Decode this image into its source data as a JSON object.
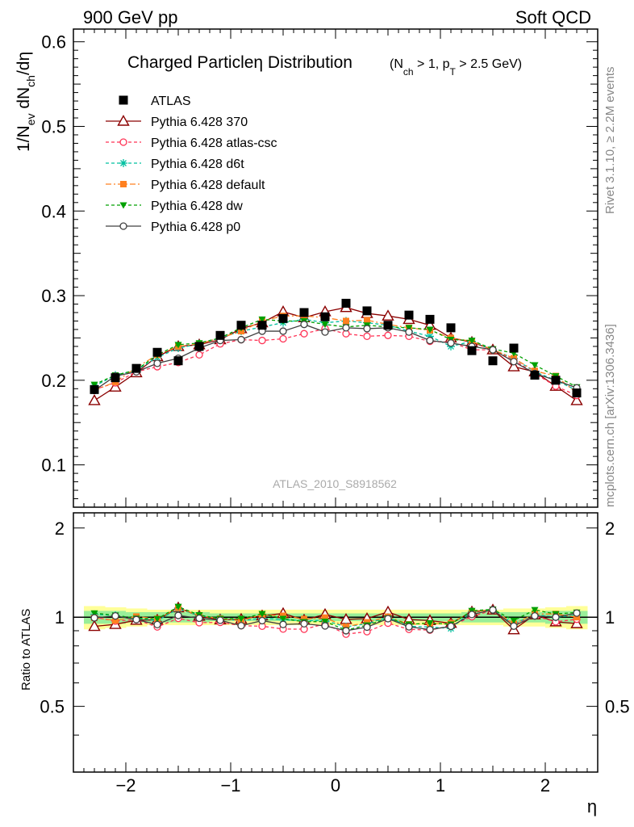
{
  "header": {
    "left": "900 GeV pp",
    "right": "Soft QCD"
  },
  "side": {
    "rivet": "Rivet 3.1.10, ≥ 2.2M events",
    "mcplots": "mcplots.cern.ch [arXiv:1306.3436]"
  },
  "chart_data": {
    "type": "scatter",
    "title_main": "Charged Particleη Distribution",
    "title_cut": "(N_ch > 1, p_T > 2.5 GeV)",
    "ref_label": "ATLAS_2010_S8918562",
    "xlabel": "η",
    "ylabel": "1/N_ev dN_ch/dη",
    "ratio_ylabel": "Ratio to ATLAS",
    "xlim": [
      -2.5,
      2.5
    ],
    "ylim": [
      0.05,
      0.615
    ],
    "ratio_ylim": [
      0.3,
      2.25
    ],
    "x_ticks": [
      -2,
      -1,
      0,
      1,
      2
    ],
    "x_tick_labels": [
      "−2",
      "−1",
      "0",
      "1",
      "2"
    ],
    "y_ticks": [
      0.1,
      0.2,
      0.3,
      0.4,
      0.5,
      0.6
    ],
    "y_tick_labels": [
      "0.1",
      "0.2",
      "0.3",
      "0.4",
      "0.5",
      "0.6"
    ],
    "ratio_ticks": [
      0.5,
      1,
      2
    ],
    "ratio_tick_labels": [
      "0.5",
      "1",
      "2"
    ],
    "x": [
      -2.3,
      -2.1,
      -1.9,
      -1.7,
      -1.5,
      -1.3,
      -1.1,
      -0.9,
      -0.7,
      -0.5,
      -0.3,
      -0.1,
      0.1,
      0.3,
      0.5,
      0.7,
      0.9,
      1.1,
      1.3,
      1.5,
      1.7,
      1.9,
      2.1,
      2.3
    ],
    "band_inner": [
      0.05,
      0.05,
      0.04,
      0.04,
      0.04,
      0.04,
      0.03,
      0.03,
      0.03,
      0.03,
      0.03,
      0.03,
      0.03,
      0.03,
      0.03,
      0.03,
      0.03,
      0.03,
      0.04,
      0.04,
      0.04,
      0.04,
      0.05,
      0.05
    ],
    "band_outer": [
      0.09,
      0.08,
      0.07,
      0.06,
      0.06,
      0.06,
      0.06,
      0.06,
      0.06,
      0.06,
      0.06,
      0.06,
      0.06,
      0.06,
      0.06,
      0.06,
      0.06,
      0.06,
      0.06,
      0.06,
      0.07,
      0.07,
      0.08,
      0.09
    ],
    "series": [
      {
        "name": "ATLAS",
        "color": "#000000",
        "marker": "square",
        "line": "none",
        "values": [
          0.189,
          0.203,
          0.214,
          0.233,
          0.223,
          0.24,
          0.253,
          0.265,
          0.265,
          0.273,
          0.28,
          0.275,
          0.291,
          0.282,
          0.265,
          0.277,
          0.272,
          0.262,
          0.235,
          0.223,
          0.238,
          0.206,
          0.2,
          0.185
        ]
      },
      {
        "name": "Pythia 6.428 370",
        "color": "#8b0000",
        "marker": "triangle-open",
        "line": "solid",
        "values": [
          0.176,
          0.192,
          0.209,
          0.228,
          0.24,
          0.242,
          0.248,
          0.261,
          0.268,
          0.281,
          0.274,
          0.281,
          0.286,
          0.279,
          0.276,
          0.272,
          0.265,
          0.25,
          0.245,
          0.236,
          0.216,
          0.21,
          0.193,
          0.176
        ]
      },
      {
        "name": "Pythia 6.428 atlas-csc",
        "color": "#ff3355",
        "marker": "circle-open",
        "line": "dashed",
        "values": [
          0.189,
          0.197,
          0.21,
          0.216,
          0.221,
          0.23,
          0.243,
          0.248,
          0.247,
          0.249,
          0.255,
          0.261,
          0.255,
          0.252,
          0.253,
          0.252,
          0.246,
          0.245,
          0.236,
          0.236,
          0.224,
          0.208,
          0.193,
          0.182
        ]
      },
      {
        "name": "Pythia 6.428 d6t",
        "color": "#00c0a0",
        "marker": "star",
        "line": "dashed",
        "values": [
          0.193,
          0.206,
          0.212,
          0.227,
          0.238,
          0.243,
          0.25,
          0.258,
          0.263,
          0.268,
          0.272,
          0.268,
          0.27,
          0.268,
          0.265,
          0.258,
          0.252,
          0.24,
          0.246,
          0.236,
          0.226,
          0.21,
          0.2,
          0.188
        ]
      },
      {
        "name": "Pythia 6.428 default",
        "color": "#ff8020",
        "marker": "square-small",
        "line": "dashdot",
        "values": [
          0.188,
          0.198,
          0.215,
          0.23,
          0.24,
          0.243,
          0.25,
          0.258,
          0.27,
          0.276,
          0.276,
          0.274,
          0.27,
          0.271,
          0.266,
          0.262,
          0.259,
          0.25,
          0.246,
          0.236,
          0.226,
          0.211,
          0.205,
          0.185
        ]
      },
      {
        "name": "Pythia 6.428 dw",
        "color": "#00a000",
        "marker": "triangle-down",
        "line": "dashed",
        "values": [
          0.195,
          0.206,
          0.212,
          0.23,
          0.242,
          0.244,
          0.25,
          0.262,
          0.272,
          0.27,
          0.27,
          0.266,
          0.263,
          0.265,
          0.263,
          0.262,
          0.26,
          0.248,
          0.247,
          0.237,
          0.232,
          0.218,
          0.205,
          0.192
        ]
      },
      {
        "name": "Pythia 6.428 p0",
        "color": "#404040",
        "marker": "circle-open",
        "line": "solid",
        "values": [
          0.188,
          0.205,
          0.21,
          0.22,
          0.226,
          0.238,
          0.247,
          0.248,
          0.258,
          0.258,
          0.266,
          0.257,
          0.262,
          0.261,
          0.262,
          0.257,
          0.247,
          0.244,
          0.24,
          0.236,
          0.222,
          0.208,
          0.2,
          0.191
        ]
      }
    ]
  }
}
